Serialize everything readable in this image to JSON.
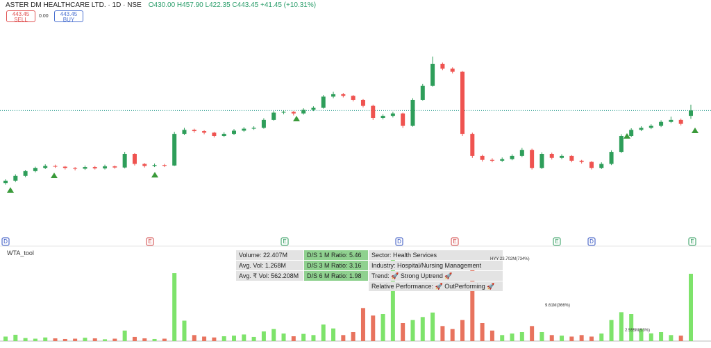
{
  "header": {
    "title": "ASTER DM HEALTHCARE LTD. · 1D · NSE",
    "ohlc": "O430.00 H457.90 L422.35 C443.45 +41.45 (+10.31%)",
    "sell_price": "443.45",
    "sell": "SELL",
    "spread": "0.00",
    "buy_price": "443.45",
    "buy": "BUY"
  },
  "indicator_name": "WTA_tool",
  "info_table": {
    "col1": [
      "Volume: 22.407M",
      "Avg. Vol: 1.268M",
      "Avg. ₹ Vol: 562.208M"
    ],
    "col2": [
      "D/S 1 M Ratio: 5.46",
      "D/S 3 M Ratio: 3.16",
      "D/S 6 M Ratio: 1.98"
    ],
    "col3": [
      "Sector: Health Services",
      "Industry: Hospital/Nursing Management",
      "Trend: 🚀 Strong Uptrend 🚀",
      "Relative Performance: 🚀 OutPerforming 🚀"
    ]
  },
  "events": [
    "D",
    "E",
    "E",
    "D",
    "E",
    "E",
    "D",
    "E"
  ],
  "annotations": [
    "HYY 23.702M(734%)",
    "9.61M(366%)",
    "2.555M(53%)"
  ],
  "chart_data": {
    "type": "candlestick",
    "ylim": [
      200,
      650
    ],
    "current_price": 443.45,
    "up_color": "#2e9e5a",
    "down_color": "#ef5350",
    "candles": [
      [
        262,
        272,
        258,
        268
      ],
      [
        268,
        284,
        265,
        280
      ],
      [
        280,
        295,
        277,
        292
      ],
      [
        292,
        303,
        289,
        300
      ],
      [
        300,
        309,
        297,
        305
      ],
      [
        305,
        308,
        300,
        303
      ],
      [
        303,
        305,
        296,
        300
      ],
      [
        300,
        302,
        294,
        298
      ],
      [
        298,
        306,
        295,
        302
      ],
      [
        302,
        305,
        296,
        299
      ],
      [
        299,
        308,
        296,
        304
      ],
      [
        304,
        306,
        298,
        301
      ],
      [
        301,
        340,
        299,
        335
      ],
      [
        335,
        337,
        306,
        310
      ],
      [
        310,
        312,
        301,
        305
      ],
      [
        305,
        311,
        302,
        307
      ],
      [
        307,
        310,
        302,
        306
      ],
      [
        306,
        390,
        305,
        385
      ],
      [
        385,
        400,
        382,
        395
      ],
      [
        395,
        398,
        388,
        392
      ],
      [
        392,
        394,
        384,
        388
      ],
      [
        388,
        390,
        376,
        380
      ],
      [
        380,
        389,
        377,
        385
      ],
      [
        385,
        397,
        382,
        393
      ],
      [
        393,
        402,
        390,
        398
      ],
      [
        398,
        404,
        395,
        400
      ],
      [
        400,
        424,
        398,
        420
      ],
      [
        420,
        442,
        418,
        438
      ],
      [
        438,
        444,
        434,
        440
      ],
      [
        440,
        442,
        431,
        436
      ],
      [
        436,
        449,
        433,
        445
      ],
      [
        445,
        454,
        442,
        450
      ],
      [
        450,
        482,
        448,
        478
      ],
      [
        478,
        490,
        474,
        484
      ],
      [
        484,
        487,
        476,
        480
      ],
      [
        480,
        482,
        466,
        470
      ],
      [
        470,
        472,
        451,
        455
      ],
      [
        455,
        458,
        420,
        425
      ],
      [
        425,
        434,
        421,
        430
      ],
      [
        430,
        440,
        426,
        436
      ],
      [
        436,
        438,
        400,
        405
      ],
      [
        405,
        474,
        403,
        470
      ],
      [
        470,
        510,
        468,
        505
      ],
      [
        505,
        578,
        503,
        560
      ],
      [
        560,
        563,
        544,
        548
      ],
      [
        548,
        551,
        536,
        540
      ],
      [
        540,
        542,
        380,
        385
      ],
      [
        385,
        388,
        325,
        330
      ],
      [
        330,
        333,
        316,
        320
      ],
      [
        320,
        324,
        314,
        318
      ],
      [
        318,
        326,
        315,
        322
      ],
      [
        322,
        334,
        319,
        330
      ],
      [
        330,
        350,
        327,
        345
      ],
      [
        345,
        348,
        296,
        300
      ],
      [
        300,
        339,
        297,
        335
      ],
      [
        335,
        338,
        321,
        325
      ],
      [
        325,
        334,
        322,
        330
      ],
      [
        330,
        332,
        314,
        318
      ],
      [
        318,
        320,
        311,
        315
      ],
      [
        315,
        317,
        296,
        300
      ],
      [
        300,
        314,
        297,
        310
      ],
      [
        310,
        344,
        307,
        340
      ],
      [
        340,
        384,
        337,
        380
      ],
      [
        380,
        399,
        377,
        395
      ],
      [
        395,
        404,
        392,
        400
      ],
      [
        400,
        409,
        397,
        405
      ],
      [
        405,
        419,
        402,
        415
      ],
      [
        415,
        428,
        412,
        420
      ],
      [
        420,
        423,
        406,
        410
      ],
      [
        430,
        457.9,
        422.35,
        443.45
      ]
    ],
    "volume": {
      "ylim": [
        0,
        30
      ],
      "up_color": "#7ee36b",
      "down_color": "#e8735e",
      "values": [
        1.5,
        2.1,
        1.0,
        0.8,
        1.2,
        0.9,
        0.7,
        0.8,
        1.1,
        0.9,
        0.6,
        0.8,
        3.5,
        1.4,
        0.9,
        0.7,
        0.8,
        22.6,
        6.8,
        2.0,
        1.5,
        1.2,
        1.6,
        1.8,
        2.2,
        1.4,
        3.2,
        4.0,
        2.5,
        1.6,
        2.4,
        2.0,
        5.5,
        4.2,
        2.0,
        3.0,
        11.0,
        8.5,
        9.0,
        29.0,
        6.0,
        7.0,
        8.0,
        9.5,
        5.0,
        4.0,
        7.0,
        23.702,
        6.0,
        3.5,
        2.0,
        2.5,
        3.0,
        5.0,
        3.0,
        2.0,
        1.8,
        1.5,
        2.0,
        1.5,
        2.5,
        7.0,
        9.61,
        9.0,
        4.0,
        2.555,
        3.0,
        2.0,
        1.8,
        22.407
      ]
    }
  }
}
